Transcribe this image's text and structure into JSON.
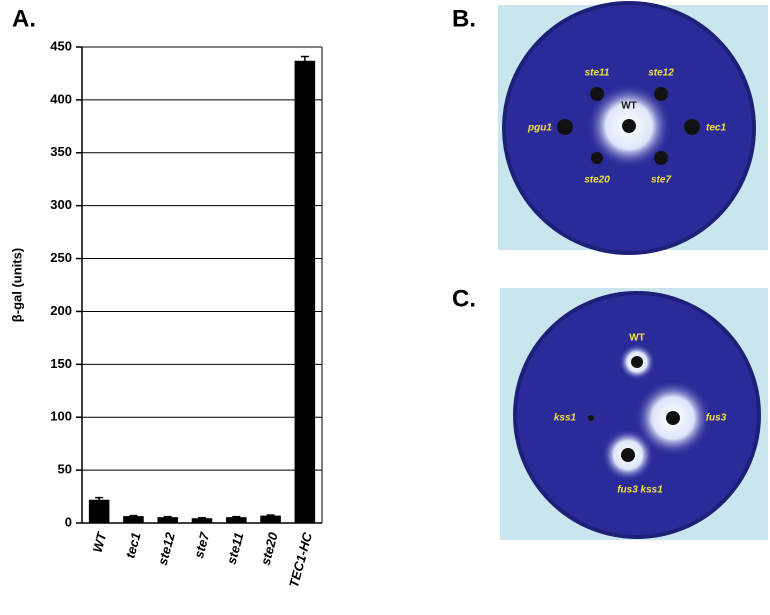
{
  "chart_data": {
    "type": "bar",
    "panel": "A.",
    "ylabel": "β-gal (units)",
    "categories": [
      "WT",
      "tec1",
      "ste12",
      "ste7",
      "ste11",
      "ste20",
      "TEC1-HC"
    ],
    "values": [
      22,
      6.5,
      5.5,
      4.5,
      5.5,
      7,
      437
    ],
    "errors": [
      2,
      0.5,
      0.5,
      0.5,
      0.5,
      0.5,
      4
    ],
    "color": "#000000",
    "ylim": [
      0,
      450
    ],
    "yticks": [
      0,
      50,
      100,
      150,
      200,
      250,
      300,
      350,
      400,
      450
    ],
    "grid": true
  },
  "plate_b": {
    "panel": "B.",
    "labels": [
      "WT",
      "ste11",
      "ste12",
      "pgu1",
      "tec1",
      "ste20",
      "ste7"
    ]
  },
  "plate_c": {
    "panel": "C.",
    "labels": [
      "WT",
      "kss1",
      "fus3",
      "fus3 kss1"
    ]
  }
}
